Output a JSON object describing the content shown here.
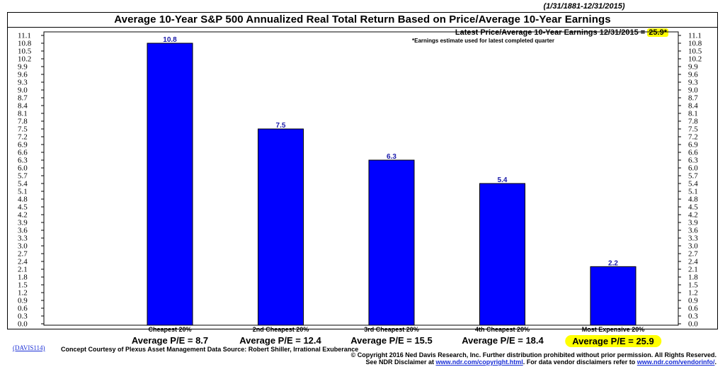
{
  "header": {
    "date_range": "(1/31/1881-12/31/2015)",
    "title": "Average 10-Year S&P 500 Annualized Real Total Return Based on Price/Average 10-Year Earnings",
    "latest_label": "Latest Price/Average 10-Year Earnings 12/31/2015 =",
    "latest_value": "25.9*",
    "estimate_note": "*Earnings estimate used for latest completed quarter"
  },
  "chart_data": {
    "type": "bar",
    "title": "Average 10-Year S&P 500 Annualized Real Total Return Based on Price/Average 10-Year Earnings",
    "categories": [
      "Cheapest 20%",
      "2nd Cheapest 20%",
      "3rd Cheapest 20%",
      "4th Cheapest 20%",
      "Most Expensive 20%"
    ],
    "values": [
      10.8,
      7.5,
      6.3,
      5.4,
      2.2
    ],
    "value_labels": [
      "10.8",
      "7.5",
      "6.3",
      "5.4",
      "2.2"
    ],
    "ylim": [
      0,
      11.1
    ],
    "y_ticks": [
      "0.0",
      "0.3",
      "0.6",
      "0.9",
      "1.2",
      "1.5",
      "1.8",
      "2.1",
      "2.4",
      "2.7",
      "3.0",
      "3.3",
      "3.6",
      "3.9",
      "4.2",
      "4.5",
      "4.8",
      "5.1",
      "5.4",
      "5.7",
      "6.0",
      "6.3",
      "6.6",
      "6.9",
      "7.2",
      "7.5",
      "7.8",
      "8.1",
      "8.4",
      "8.7",
      "9.0",
      "9.3",
      "9.6",
      "9.9",
      "10.2",
      "10.5",
      "10.8",
      "11.1"
    ],
    "y_axis_both_sides": true,
    "grid": false,
    "bar_color": "#0000ff",
    "label_color": "#1a1aaa"
  },
  "pe_labels": [
    "Average P/E = 8.7",
    "Average P/E = 12.4",
    "Average P/E = 15.5",
    "Average P/E = 18.4",
    "Average P/E = 25.9"
  ],
  "highlight_color": "#ffff00",
  "footer": {
    "code": "(DAVIS114)",
    "courtesy": "Concept Courtesy of Plexus Asset Management Data Source: Robert Shiller, Irrational Exuberance",
    "copyright": "© Copyright 2016 Ned Davis Research, Inc.  Further distribution prohibited without prior permission.  All Rights Reserved.",
    "disclaimer_pre": "See NDR Disclaimer at",
    "disclaimer_link1": "www.ndr.com/copyright.html",
    "disclaimer_mid": ". For data vendor disclaimers refer to",
    "disclaimer_link2": "www.ndr.com/vendorinfo/",
    "disclaimer_post": "."
  }
}
